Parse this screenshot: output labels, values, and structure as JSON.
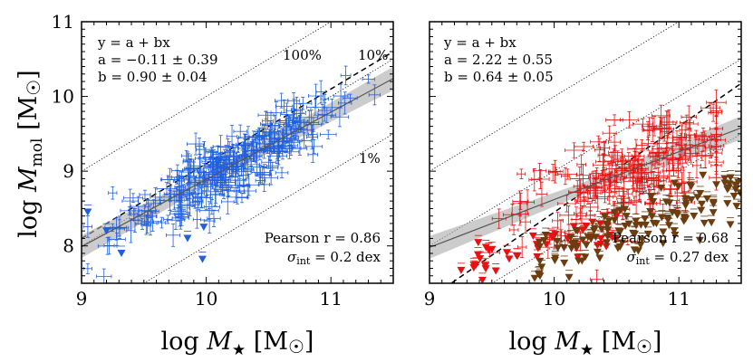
{
  "figure": {
    "ylabel": "log M_mol [M☉]",
    "ylabel_main": "log ",
    "ylabel_var": "M",
    "ylabel_sub": "mol",
    "ylabel_unit": " [M",
    "ylabel_sun": "☉",
    "ylabel_close": "]",
    "xlabel": "log M★ [M☉]",
    "xlabel_main": "log ",
    "xlabel_var": "M",
    "xlabel_sub": "★",
    "xlabel_unit": " [M",
    "xlabel_sun": "☉",
    "xlabel_close": "]",
    "colors": {
      "blue": "#1f5fe0",
      "red": "#e81010",
      "brown": "#6b3d10",
      "fit": "#000000",
      "band": "#aaaaaa"
    }
  },
  "chart_data": [
    {
      "type": "scatter",
      "panel": "left",
      "xlim": [
        9,
        11.5
      ],
      "ylim": [
        7.5,
        11
      ],
      "xticks": [
        "9",
        "10",
        "11"
      ],
      "yticks": [
        "8",
        "9",
        "10",
        "11"
      ],
      "fit_eq": "y = a + bx",
      "fit_a": "a = −0.11 ± 0.39",
      "fit_b": "b = 0.90 ± 0.04",
      "intercept": -0.11,
      "slope": 0.9,
      "gas_fraction_lines": [
        {
          "label": "100%",
          "offset": 0
        },
        {
          "label": "10%",
          "offset": -1
        },
        {
          "label": "1%",
          "offset": -2
        }
      ],
      "pearson": "Pearson r = 0.86",
      "sigma": "σint = 0.2 dex",
      "sigma_sym": "σ",
      "sigma_sub": "int",
      "sigma_val": " = 0.2 dex",
      "series": [
        {
          "name": "detections",
          "marker": "errorbar",
          "color": "#1f5fe0",
          "x_mean": 10.2,
          "x_std": 0.45,
          "n": 320
        },
        {
          "name": "upper limits",
          "marker": "triangle-down",
          "color": "#1f5fe0",
          "points": [
            [
              9.05,
              8.45
            ],
            [
              9.2,
              8.2
            ],
            [
              9.32,
              7.9
            ],
            [
              9.85,
              8.1
            ],
            [
              9.98,
              8.25
            ],
            [
              9.97,
              7.82
            ]
          ]
        }
      ]
    },
    {
      "type": "scatter",
      "panel": "right",
      "xlim": [
        9,
        11.5
      ],
      "ylim": [
        7.5,
        11
      ],
      "xticks": [
        "9",
        "10",
        "11"
      ],
      "yticks": [],
      "fit_eq": "y = a + bx",
      "fit_a": "a = 2.22 ± 0.55",
      "fit_b": "b = 0.64 ± 0.05",
      "intercept": 2.22,
      "slope": 0.64,
      "gas_fraction_lines": [
        {
          "label": "",
          "offset": 0
        },
        {
          "label": "",
          "offset": -1
        },
        {
          "label": "",
          "offset": -2
        }
      ],
      "pearson": "Pearson r = 0.68",
      "sigma": "σint = 0.27 dex",
      "sigma_sym": "σ",
      "sigma_sub": "int",
      "sigma_val": " = 0.27 dex",
      "series": [
        {
          "name": "detections",
          "marker": "errorbar",
          "color": "#e81010",
          "x_mean": 10.6,
          "x_std": 0.45,
          "n": 230
        },
        {
          "name": "upper limits",
          "marker": "triangle-down",
          "color": "#e81010",
          "n": 45
        },
        {
          "name": "upper limits (other)",
          "marker": "triangle-down",
          "color": "#6b3d10",
          "n": 130
        },
        {
          "name": "detections (other)",
          "marker": "errorbar",
          "color": "#6b3d10",
          "n": 10
        }
      ]
    }
  ]
}
